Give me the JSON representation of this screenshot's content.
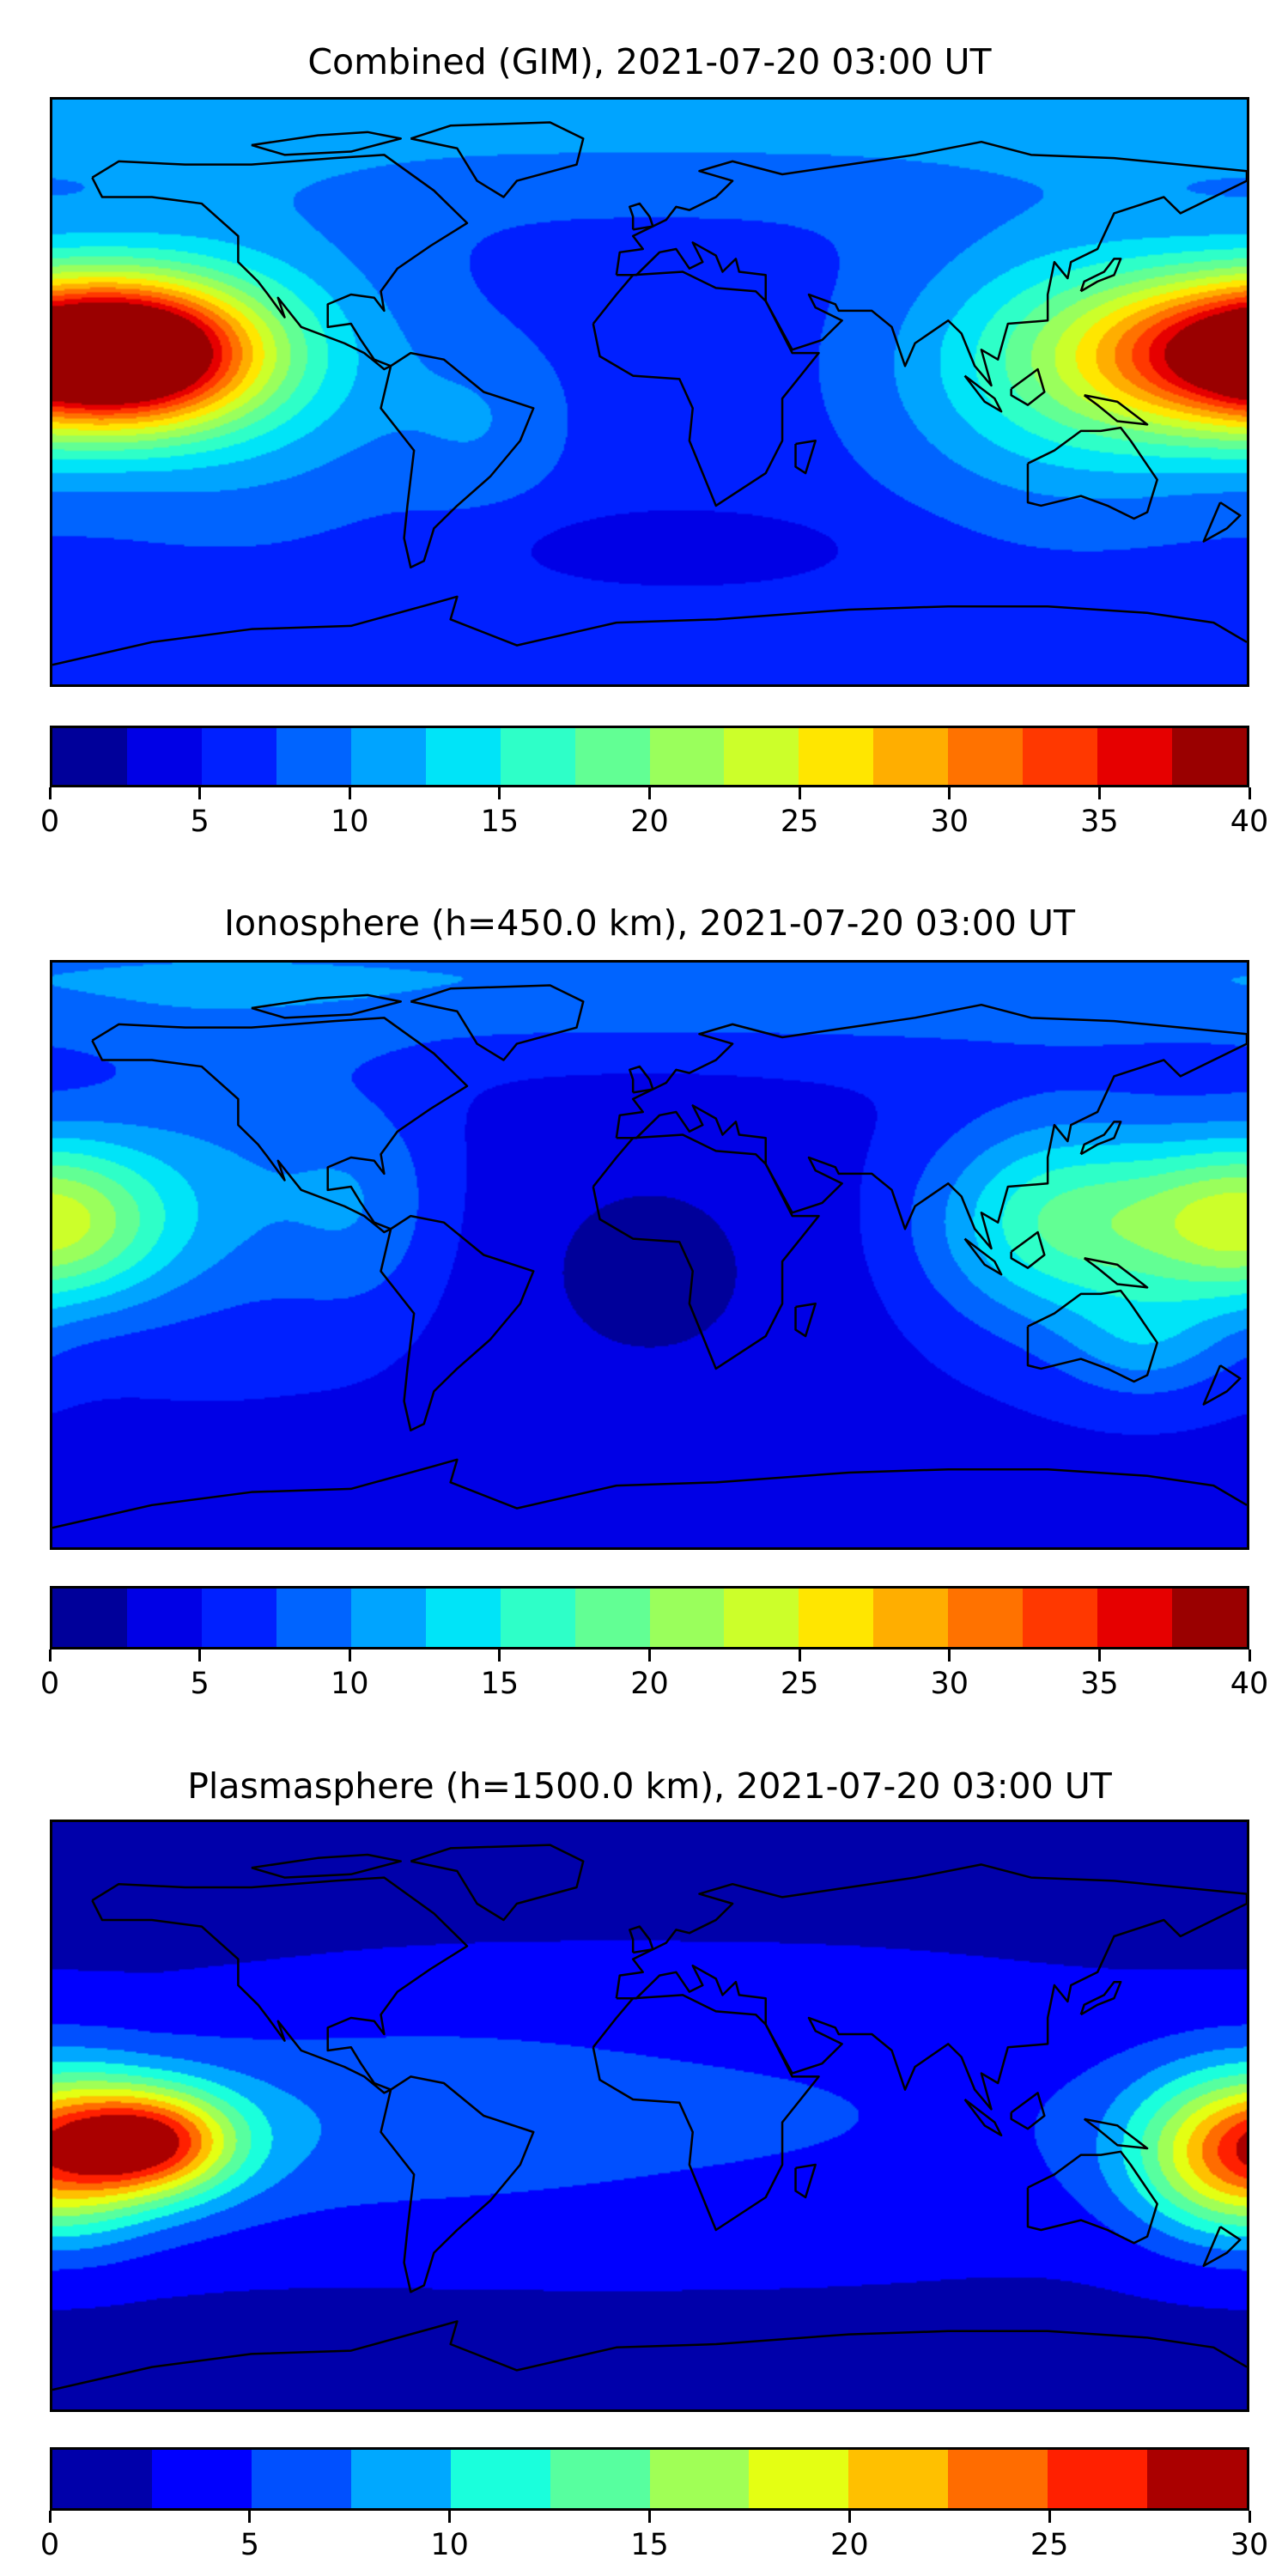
{
  "chart_data": [
    {
      "type": "heatmap",
      "title": "Combined (GIM), 2021-07-20 03:00 UT",
      "projection": "PlateCarree",
      "lon_range": [
        -180,
        180
      ],
      "lat_range": [
        -90,
        90
      ],
      "colorbar": {
        "levels_step": 2.5,
        "range": [
          0,
          40
        ],
        "tick_labels": [
          "0",
          "5",
          "10",
          "15",
          "20",
          "25",
          "30",
          "35",
          "40"
        ],
        "colors": [
          "#00009a",
          "#0000e6",
          "#0020ff",
          "#0064ff",
          "#00a4ff",
          "#00e4f8",
          "#2effc8",
          "#62ff94",
          "#9aff5c",
          "#ccff2a",
          "#ffe600",
          "#ffae00",
          "#ff7200",
          "#ff3800",
          "#e60000",
          "#9a0000"
        ]
      },
      "field": {
        "base": 6.2,
        "features": [
          {
            "lon": -155,
            "lat": 12,
            "amp": 28,
            "slon": 26,
            "slat": 15
          },
          {
            "lon": -125,
            "lat": 10,
            "amp": 8,
            "slon": 38,
            "slat": 30
          },
          {
            "lon": 172,
            "lat": 12,
            "amp": 21,
            "slon": 32,
            "slat": 17
          },
          {
            "lon": 128,
            "lat": 8,
            "amp": 10,
            "slon": 38,
            "slat": 28
          },
          {
            "lon": 0,
            "lat": 90,
            "amp": 5,
            "slon": 900,
            "slat": 22
          },
          {
            "lon": 10,
            "lat": -48,
            "amp": -3.5,
            "slon": 35,
            "slat": 8
          },
          {
            "lon": -50,
            "lat": -10,
            "amp": 3,
            "slon": 18,
            "slat": 18
          }
        ]
      }
    },
    {
      "type": "heatmap",
      "title": "Ionosphere  (h=450.0 km), 2021-07-20 03:00 UT",
      "projection": "PlateCarree",
      "lon_range": [
        -180,
        180
      ],
      "lat_range": [
        -90,
        90
      ],
      "colorbar": {
        "levels_step": 2.5,
        "range": [
          0,
          40
        ],
        "tick_labels": [
          "0",
          "5",
          "10",
          "15",
          "20",
          "25",
          "30",
          "35",
          "40"
        ],
        "colors": [
          "#00009a",
          "#0000e6",
          "#0020ff",
          "#0064ff",
          "#00a4ff",
          "#00e4f8",
          "#2effc8",
          "#62ff94",
          "#9aff5c",
          "#ccff2a",
          "#ffe600",
          "#ffae00",
          "#ff7200",
          "#ff3800",
          "#e60000",
          "#9a0000"
        ]
      },
      "field": {
        "base": 4.5,
        "features": [
          {
            "lon": -180,
            "lat": 10,
            "amp": 17,
            "slon": 24,
            "slat": 18
          },
          {
            "lon": -130,
            "lat": 20,
            "amp": 5,
            "slon": 30,
            "slat": 30
          },
          {
            "lon": 125,
            "lat": 10,
            "amp": 13,
            "slon": 28,
            "slat": 22
          },
          {
            "lon": 150,
            "lat": -28,
            "amp": 5,
            "slon": 18,
            "slat": 12
          },
          {
            "lon": 0,
            "lat": 85,
            "amp": 5.5,
            "slon": 900,
            "slat": 16
          },
          {
            "lon": 0,
            "lat": -5,
            "amp": -2.5,
            "slon": 40,
            "slat": 35
          },
          {
            "lon": -85,
            "lat": 15,
            "amp": 4,
            "slon": 18,
            "slat": 25
          }
        ]
      }
    },
    {
      "type": "heatmap",
      "title": "Plasmasphere (h=1500.0 km), 2021-07-20 03:00 UT",
      "projection": "PlateCarree",
      "lon_range": [
        -180,
        180
      ],
      "lat_range": [
        -90,
        90
      ],
      "colorbar": {
        "levels_step": 2.5,
        "range": [
          0,
          30
        ],
        "tick_labels": [
          "0",
          "5",
          "10",
          "15",
          "20",
          "25",
          "30"
        ],
        "colors": [
          "#0000aa",
          "#0000ff",
          "#0050ff",
          "#00a8ff",
          "#1affdc",
          "#57ff9f",
          "#a0ff56",
          "#e4ff13",
          "#ffc000",
          "#ff6c00",
          "#ff2000",
          "#aa0000"
        ]
      },
      "field": {
        "base": 1.6,
        "features": [
          {
            "lon": -150,
            "lat": -8,
            "amp": 18,
            "slon": 18,
            "slat": 11
          },
          {
            "lon": -160,
            "lat": -8,
            "amp": 5,
            "slon": 40,
            "slat": 22
          },
          {
            "lon": 178,
            "lat": -12,
            "amp": 17,
            "slon": 22,
            "slat": 17
          },
          {
            "lon": 30,
            "lat": 0,
            "amp": 3.5,
            "slon": 110,
            "slat": 32
          },
          {
            "lon": -80,
            "lat": 0,
            "amp": 2.5,
            "slon": 50,
            "slat": 25
          }
        ]
      }
    }
  ]
}
